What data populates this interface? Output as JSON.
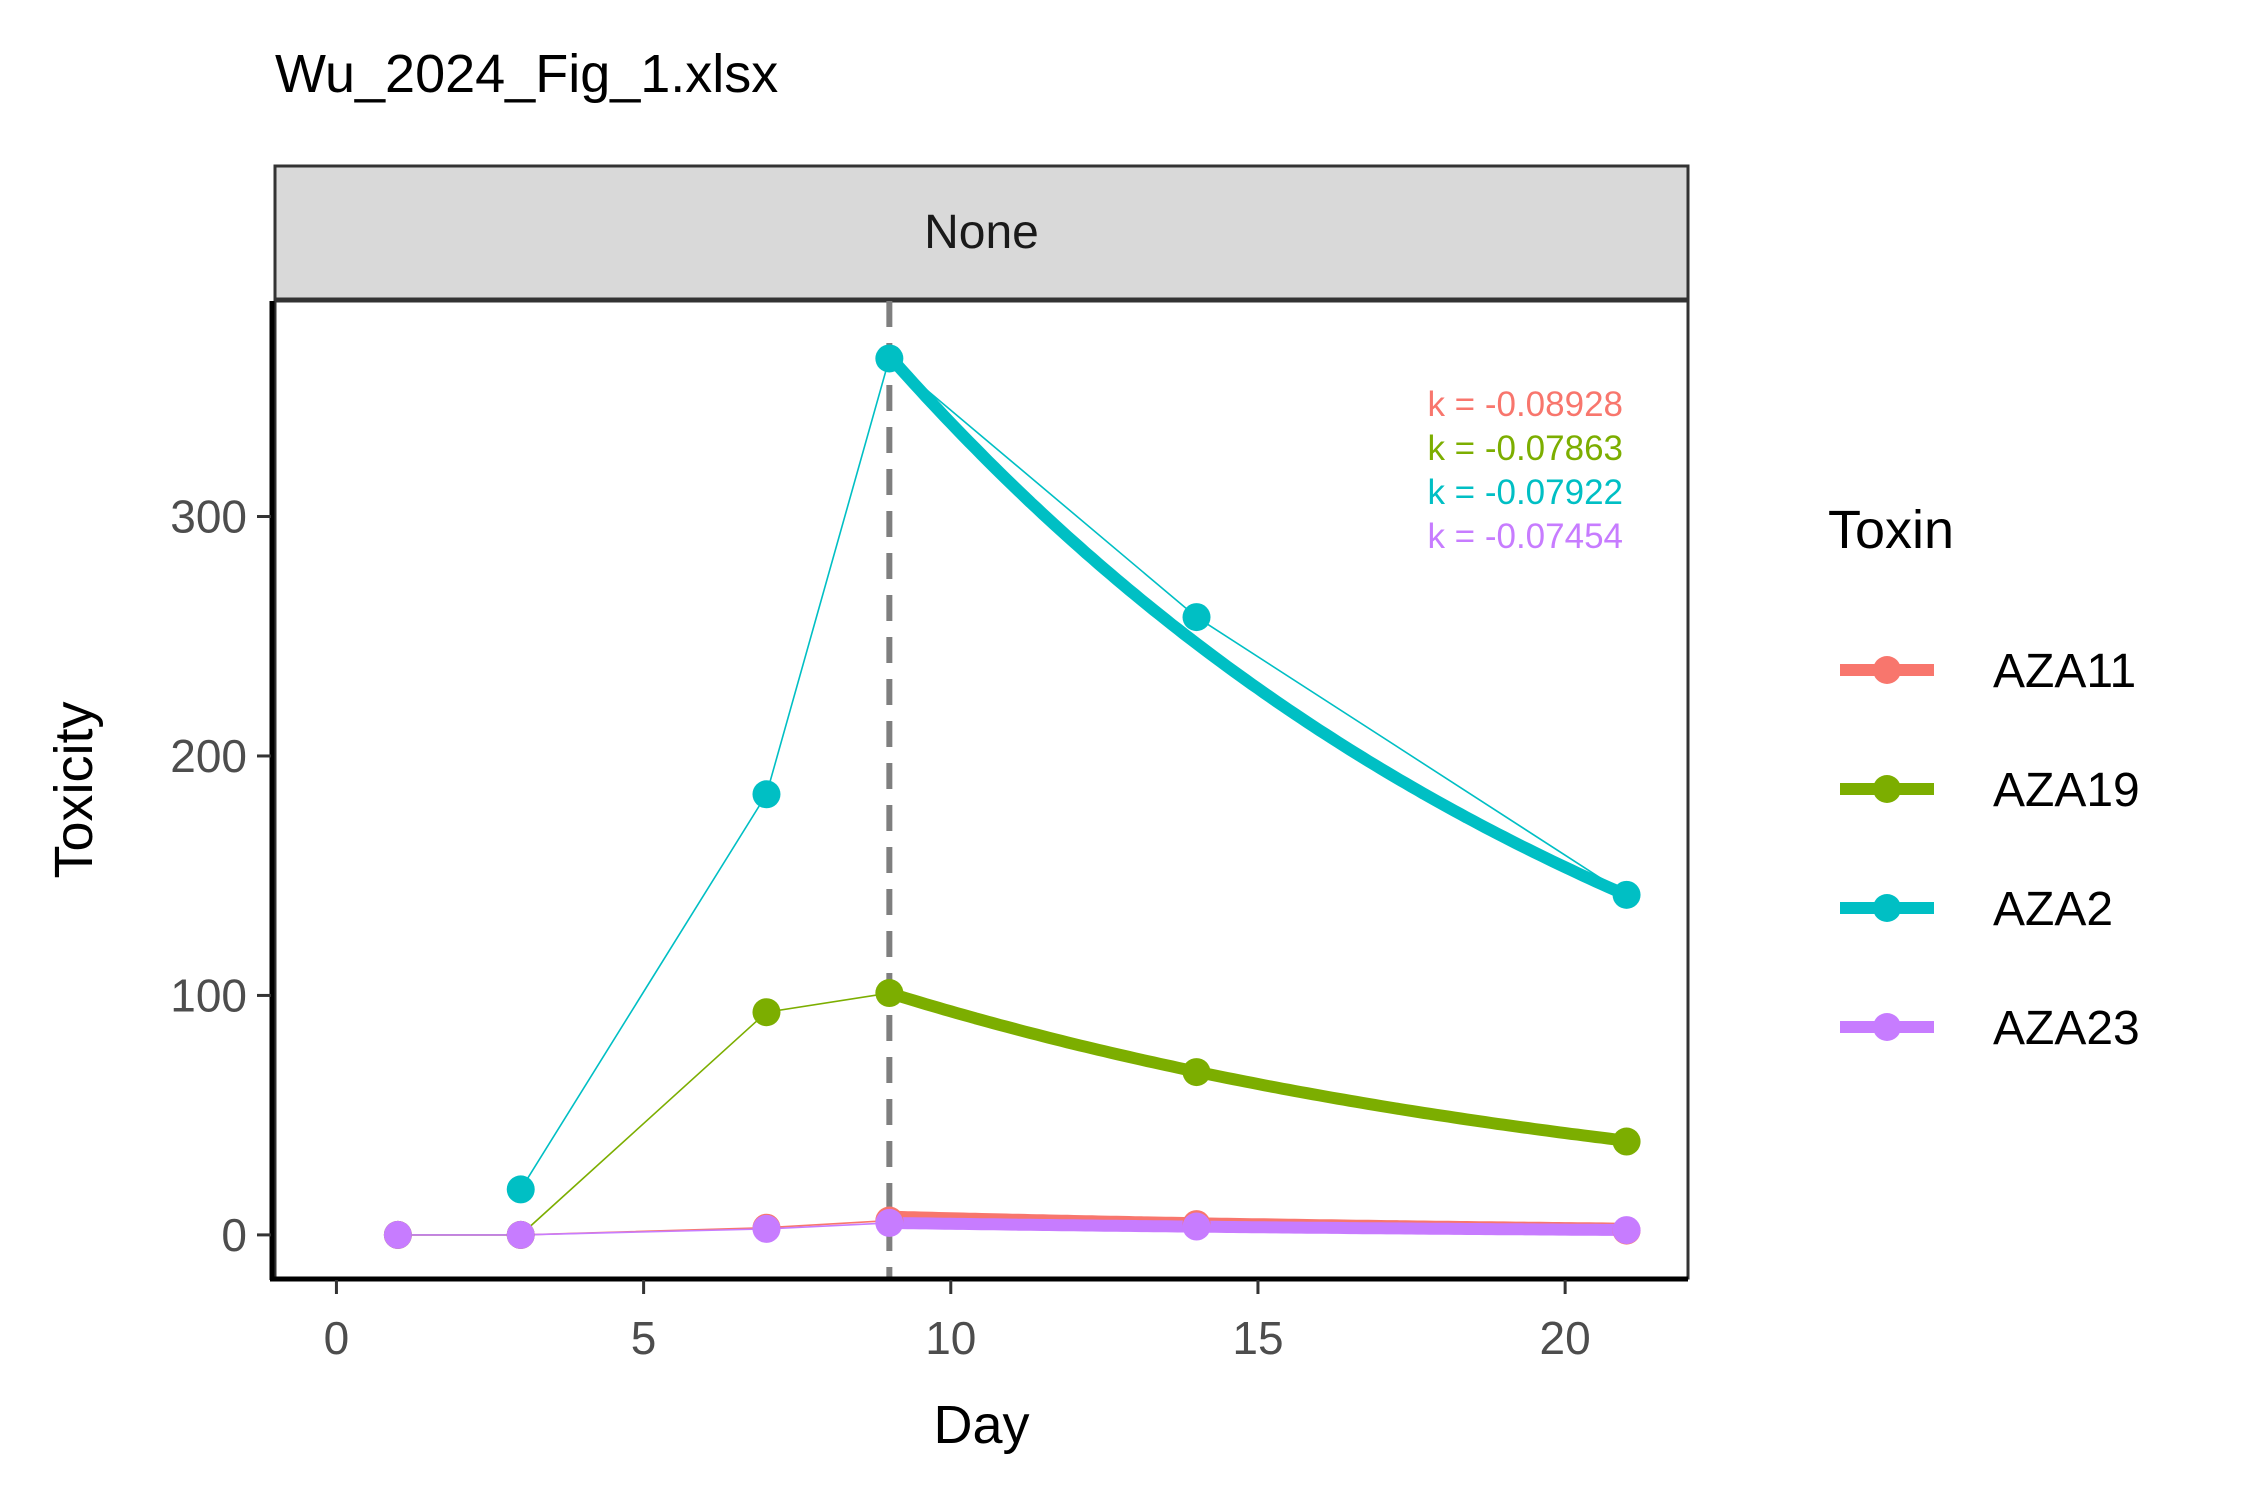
{
  "chart_data": {
    "type": "line",
    "title": "Wu_2024_Fig_1.xlsx",
    "facet_label": "None",
    "xlabel": "Day",
    "ylabel": "Toxicity",
    "xlim": [
      -1,
      22
    ],
    "ylim": [
      -18,
      390
    ],
    "xticks": [
      0,
      5,
      10,
      15,
      20
    ],
    "yticks": [
      0,
      100,
      200,
      300
    ],
    "grid": false,
    "legend_title": "Toxin",
    "legend_position": "right",
    "vline_x": 9,
    "series": [
      {
        "name": "AZA11",
        "color": "#F8766D",
        "x": [
          1,
          3,
          7,
          9,
          14,
          21
        ],
        "y": [
          0,
          0,
          3,
          6,
          4.5,
          1.8
        ],
        "fit": {
          "start_x": 9,
          "end_x": 21,
          "y0": 7.6,
          "k": -0.08928
        },
        "k_label": "k = -0.08928"
      },
      {
        "name": "AZA19",
        "color": "#7CAE00",
        "x": [
          1,
          3,
          7,
          9,
          14,
          21
        ],
        "y": [
          0,
          0,
          93,
          101,
          68,
          39
        ],
        "fit": {
          "start_x": 9,
          "end_x": 21,
          "y0": 101,
          "k": -0.07863
        },
        "k_label": "k = -0.07863"
      },
      {
        "name": "AZA2",
        "color": "#00BFC4",
        "x": [
          3,
          7,
          9,
          14,
          21
        ],
        "y": [
          19,
          184,
          366,
          258,
          142
        ],
        "fit": {
          "start_x": 9,
          "end_x": 21,
          "y0": 367,
          "k": -0.07922
        },
        "k_label": "k = -0.07922"
      },
      {
        "name": "AZA23",
        "color": "#C77CFF",
        "x": [
          1,
          3,
          7,
          9,
          14,
          21
        ],
        "y": [
          0,
          0,
          2.5,
          5,
          3.5,
          2
        ],
        "fit": {
          "start_x": 9,
          "end_x": 21,
          "y0": 5.0,
          "k": -0.07454
        },
        "k_label": "k = -0.07454"
      }
    ]
  }
}
